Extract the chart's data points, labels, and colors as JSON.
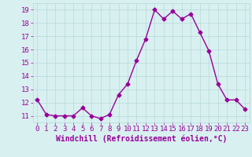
{
  "x": [
    0,
    1,
    2,
    3,
    4,
    5,
    6,
    7,
    8,
    9,
    10,
    11,
    12,
    13,
    14,
    15,
    16,
    17,
    18,
    19,
    20,
    21,
    22,
    23
  ],
  "y": [
    12.2,
    11.1,
    11.0,
    11.0,
    11.0,
    11.6,
    11.0,
    10.8,
    11.1,
    12.6,
    13.4,
    15.2,
    16.8,
    19.0,
    18.3,
    18.9,
    18.3,
    18.7,
    17.3,
    15.9,
    13.4,
    12.2,
    12.2,
    11.5
  ],
  "line_color": "#990099",
  "marker": "D",
  "markersize": 2.5,
  "linewidth": 1.0,
  "xlabel": "Windchill (Refroidissement éolien,°C)",
  "xlabel_fontsize": 7,
  "xlabel_color": "#990099",
  "bg_color": "#d8f0f0",
  "grid_color": "#b8d8d8",
  "tick_color": "#990099",
  "ylim": [
    10.5,
    19.5
  ],
  "xlim": [
    -0.5,
    23.5
  ],
  "yticks": [
    11,
    12,
    13,
    14,
    15,
    16,
    17,
    18,
    19
  ],
  "xticks": [
    0,
    1,
    2,
    3,
    4,
    5,
    6,
    7,
    8,
    9,
    10,
    11,
    12,
    13,
    14,
    15,
    16,
    17,
    18,
    19,
    20,
    21,
    22,
    23
  ],
  "tick_fontsize": 6.5
}
